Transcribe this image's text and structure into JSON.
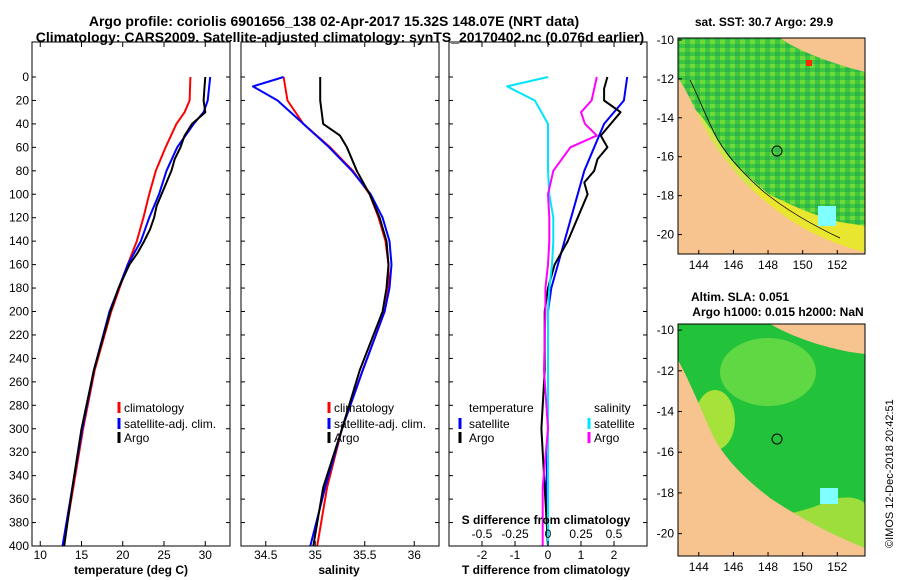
{
  "header": {
    "title_line1": "Argo profile: coriolis 6901656_138 02-Apr-2017 15.32S 148.07E (NRT data)",
    "title_line2": "Climatology: CARS2009. Satellite-adjusted climatology: synTS_20170402.nc (0.076d earlier)"
  },
  "colors": {
    "climatology": "#ff0000",
    "satellite_adj": "#0000ff",
    "argo": "#000000",
    "sal_satellite": "#00e5ff",
    "sal_argo": "#ff00ff",
    "land": "#f7c48f"
  },
  "depth_ticks": [
    "0",
    "20",
    "40",
    "60",
    "80",
    "100",
    "120",
    "140",
    "160",
    "180",
    "200",
    "220",
    "240",
    "260",
    "280",
    "300",
    "320",
    "340",
    "360",
    "380",
    "400"
  ],
  "chart_data": [
    {
      "type": "line",
      "panel": "temperature",
      "xlabel": "temperature (deg C)",
      "ylabel": "depth (m)",
      "xlim": [
        9,
        33
      ],
      "ylim": [
        400,
        0
      ],
      "x_ticks": [
        "10",
        "15",
        "20",
        "25",
        "30"
      ],
      "x_tick_values": [
        10,
        15,
        20,
        25,
        30
      ],
      "legend": [
        "climatology",
        "satellite-adj. clim.",
        "Argo"
      ],
      "series": [
        {
          "name": "climatology",
          "color": "red",
          "depth": [
            0,
            20,
            30,
            40,
            60,
            80,
            100,
            120,
            140,
            160,
            180,
            200,
            250,
            300,
            350,
            400
          ],
          "values": [
            28.2,
            28.1,
            27.5,
            26.5,
            25.2,
            24.0,
            23.2,
            22.5,
            21.7,
            20.6,
            19.6,
            18.6,
            16.6,
            15.2,
            14.0,
            12.8
          ]
        },
        {
          "name": "satellite-adj. clim.",
          "color": "blue",
          "depth": [
            0,
            20,
            30,
            40,
            60,
            80,
            100,
            120,
            140,
            160,
            180,
            200,
            250,
            300,
            350,
            400
          ],
          "values": [
            30.6,
            30.3,
            29.8,
            28.6,
            26.6,
            25.3,
            24.4,
            23.2,
            22.2,
            20.6,
            19.5,
            18.4,
            16.5,
            15.1,
            13.9,
            12.7
          ]
        },
        {
          "name": "Argo",
          "color": "black",
          "depth": [
            0,
            10,
            20,
            30,
            40,
            50,
            60,
            70,
            80,
            90,
            100,
            110,
            120,
            130,
            140,
            150,
            160,
            180,
            200,
            250,
            300,
            350,
            400
          ],
          "values": [
            30.0,
            29.9,
            29.8,
            30.0,
            28.4,
            27.5,
            27.0,
            26.3,
            25.9,
            25.3,
            24.7,
            24.1,
            23.8,
            23.3,
            22.6,
            21.8,
            20.8,
            19.5,
            18.5,
            16.5,
            15.0,
            13.9,
            12.9
          ]
        }
      ]
    },
    {
      "type": "line",
      "panel": "salinity",
      "xlabel": "salinity",
      "ylabel": "depth (m)",
      "xlim": [
        34.25,
        36.25
      ],
      "ylim": [
        400,
        0
      ],
      "x_ticks": [
        "34.5",
        "35",
        "35.5",
        "36"
      ],
      "x_tick_values": [
        34.5,
        35.0,
        35.5,
        36.0
      ],
      "legend": [
        "climatology",
        "satellite-adj. clim.",
        "Argo"
      ],
      "series": [
        {
          "name": "climatology",
          "color": "red",
          "depth": [
            0,
            20,
            40,
            60,
            80,
            100,
            120,
            140,
            160,
            180,
            200,
            250,
            300,
            350,
            400
          ],
          "values": [
            34.68,
            34.72,
            34.88,
            35.15,
            35.38,
            35.55,
            35.64,
            35.71,
            35.74,
            35.74,
            35.7,
            35.48,
            35.27,
            35.12,
            35.02
          ]
        },
        {
          "name": "satellite-adj. clim.",
          "color": "blue",
          "depth": [
            0,
            8,
            20,
            40,
            60,
            80,
            100,
            120,
            140,
            160,
            180,
            200,
            250,
            300,
            350,
            400
          ],
          "values": [
            34.68,
            34.37,
            34.62,
            34.88,
            35.14,
            35.37,
            35.56,
            35.68,
            35.75,
            35.77,
            35.75,
            35.7,
            35.48,
            35.27,
            35.1,
            34.95
          ]
        },
        {
          "name": "Argo",
          "color": "black",
          "depth": [
            0,
            20,
            40,
            50,
            60,
            80,
            100,
            120,
            140,
            160,
            180,
            200,
            250,
            300,
            350,
            400
          ],
          "values": [
            35.05,
            35.05,
            35.08,
            35.25,
            35.32,
            35.42,
            35.55,
            35.65,
            35.72,
            35.74,
            35.72,
            35.68,
            35.45,
            35.27,
            35.08,
            34.98
          ]
        }
      ]
    },
    {
      "type": "line",
      "panel": "difference",
      "xlabel": "T difference from climatology",
      "x2label": "S difference from climatology",
      "ylabel": "depth (m)",
      "xlim": [
        -3,
        3
      ],
      "ylim": [
        400,
        0
      ],
      "x_ticks": [
        "-2",
        "-1",
        "0",
        "1",
        "2"
      ],
      "x_tick_values": [
        -2,
        -1,
        0,
        1,
        2
      ],
      "x2_ticks": [
        "-0.5",
        "-0.25",
        "0",
        "0.25",
        "0.5"
      ],
      "x2_tick_values": [
        -0.5,
        -0.25,
        0,
        0.25,
        0.5
      ],
      "legend_temperature": {
        "heading": "temperature",
        "items": [
          "satellite",
          "Argo"
        ]
      },
      "legend_salinity": {
        "heading": "salinity",
        "items": [
          "satellite",
          "Argo"
        ]
      },
      "series": [
        {
          "name": "temperature satellite",
          "color": "blue",
          "units": "deg C",
          "depth": [
            0,
            20,
            40,
            60,
            80,
            100,
            120,
            140,
            160,
            180,
            200,
            250,
            300,
            350,
            400
          ],
          "values": [
            2.4,
            2.3,
            1.7,
            1.4,
            1.1,
            0.9,
            0.7,
            0.5,
            0.3,
            0.1,
            0.0,
            0.0,
            0.0,
            -0.05,
            0.0
          ]
        },
        {
          "name": "temperature Argo",
          "color": "black",
          "units": "deg C",
          "depth": [
            0,
            10,
            20,
            30,
            40,
            50,
            60,
            70,
            80,
            90,
            100,
            120,
            140,
            160,
            180,
            200,
            250,
            300,
            350,
            400
          ],
          "values": [
            1.8,
            1.7,
            1.7,
            2.2,
            1.9,
            1.6,
            1.8,
            1.5,
            1.4,
            1.1,
            1.2,
            0.9,
            0.6,
            0.2,
            0.0,
            -0.1,
            -0.1,
            -0.2,
            -0.1,
            0.0
          ]
        },
        {
          "name": "salinity satellite",
          "color": "cyan",
          "units": "psu",
          "depth": [
            0,
            8,
            20,
            40,
            60,
            80,
            100,
            120,
            140,
            160,
            180,
            200,
            250,
            300,
            350,
            400
          ],
          "values": [
            0.0,
            -0.31,
            -0.1,
            0.0,
            0.0,
            0.0,
            0.01,
            0.04,
            0.04,
            0.03,
            0.01,
            0.0,
            0.0,
            0.0,
            0.0,
            0.0
          ]
        },
        {
          "name": "salinity Argo",
          "color": "magenta",
          "units": "psu",
          "depth": [
            0,
            20,
            30,
            40,
            50,
            60,
            80,
            100,
            120,
            140,
            160,
            180,
            200,
            250,
            300,
            350,
            400
          ],
          "values": [
            0.37,
            0.33,
            0.25,
            0.28,
            0.37,
            0.17,
            0.04,
            0.0,
            0.01,
            0.01,
            0.0,
            -0.02,
            -0.02,
            -0.03,
            0.0,
            -0.04,
            -0.04
          ]
        }
      ]
    }
  ],
  "maps": {
    "lat_ticks": [
      "-10",
      "-12",
      "-14",
      "-16",
      "-18",
      "-20"
    ],
    "lon_ticks": [
      "144",
      "146",
      "148",
      "150",
      "152"
    ],
    "sst": {
      "title": "sat. SST: 30.7 Argo: 29.9"
    },
    "sla": {
      "title_line1": "Altim. SLA: 0.051",
      "title_line2": "Argo h1000: 0.015 h2000: NaN"
    }
  },
  "credit": "©IMOS 12-Dec-2018 20:42:51"
}
